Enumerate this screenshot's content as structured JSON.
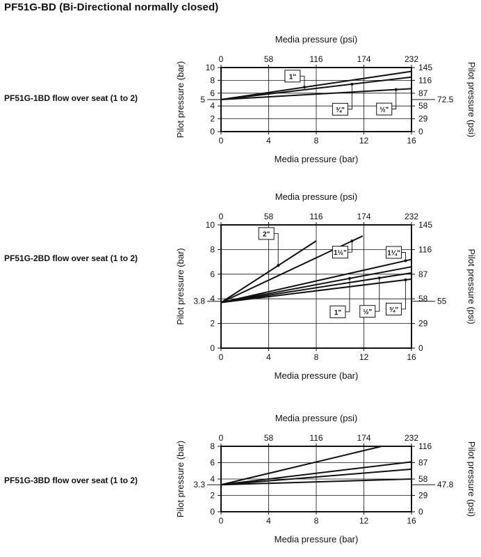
{
  "page": {
    "title": "PF51G-BD (Bi-Directional normally closed)"
  },
  "colors": {
    "line": "#111111",
    "background": "#ffffff"
  },
  "chart_data": [
    {
      "type": "line",
      "label": "PF51G-1BD flow over seat (1 to 2)",
      "title": "",
      "xlabel": "Media pressure (bar)",
      "xlabel_top": "Media pressure (psi)",
      "ylabel": "Pilot pressure (bar)",
      "ylabel_right": "Pilot pressure (psi)",
      "xlim": [
        0,
        16
      ],
      "ylim": [
        0,
        10
      ],
      "x_ticks": [
        "0",
        "4",
        "8",
        "12",
        "16"
      ],
      "x_top_ticks": [
        "0",
        "58",
        "116",
        "174",
        "232"
      ],
      "y_ticks": [
        "0",
        "2",
        "4",
        "6",
        "8",
        "10"
      ],
      "y_right_ticks": [
        "0",
        "29",
        "58",
        "87",
        "116",
        "145"
      ],
      "y_marker_left": {
        "value": 5,
        "label": "5"
      },
      "y_marker_right": {
        "value": 5,
        "label": "72.5"
      },
      "series": [
        {
          "name": "1\"",
          "x": [
            0,
            16
          ],
          "y": [
            5,
            9.4
          ],
          "callout": {
            "at": 7.0,
            "dir": "up",
            "dy": 16
          }
        },
        {
          "name": "¾\"",
          "x": [
            0,
            16
          ],
          "y": [
            5,
            8.5
          ],
          "callout": {
            "at": 11.0,
            "dir": "down",
            "dy": 36
          }
        },
        {
          "name": "½\"",
          "x": [
            0,
            16
          ],
          "y": [
            5,
            6.7
          ],
          "callout": {
            "at": 14.7,
            "dir": "down",
            "dy": 28
          }
        }
      ]
    },
    {
      "type": "line",
      "label": "PF51G-2BD flow over seat (1 to 2)",
      "title": "",
      "xlabel": "Media pressure (bar)",
      "xlabel_top": "Media pressure (psi)",
      "ylabel": "Pilot pressure (bar)",
      "ylabel_right": "Pilot pressure (psi)",
      "xlim": [
        0,
        16
      ],
      "ylim": [
        0,
        10
      ],
      "x_ticks": [
        "0",
        "4",
        "8",
        "12",
        "16"
      ],
      "x_top_ticks": [
        "0",
        "58",
        "116",
        "174",
        "232"
      ],
      "y_ticks": [
        "0",
        "2",
        "4",
        "6",
        "8",
        "10"
      ],
      "y_right_ticks": [
        "0",
        "29",
        "58",
        "87",
        "116",
        "145"
      ],
      "y_marker_left": {
        "value": 3.8,
        "label": "3.8"
      },
      "y_marker_right": {
        "value": 3.8,
        "label": "55"
      },
      "series": [
        {
          "name": "2\"",
          "x": [
            0,
            8
          ],
          "y": [
            3.7,
            8.7
          ],
          "callout": {
            "at": 4.8,
            "dir": "up",
            "dy": 46
          }
        },
        {
          "name": "1½\"",
          "x": [
            0,
            11.9
          ],
          "y": [
            3.7,
            9.1
          ],
          "callout": {
            "at": 11.0,
            "dir": "down",
            "dy": 16
          }
        },
        {
          "name": "1¼\"",
          "x": [
            0,
            16
          ],
          "y": [
            3.7,
            7.2
          ],
          "callout": {
            "at": 15.5,
            "dir": "up",
            "dy": 12
          }
        },
        {
          "name": "1\"",
          "x": [
            0,
            16
          ],
          "y": [
            3.7,
            6.6
          ],
          "callout": {
            "at": 10.8,
            "dir": "down",
            "dy": 48
          }
        },
        {
          "name": "½\"",
          "x": [
            0,
            16
          ],
          "y": [
            3.7,
            6.1
          ],
          "callout": {
            "at": 13.3,
            "dir": "down",
            "dy": 48
          }
        },
        {
          "name": "¾\"",
          "x": [
            0,
            16
          ],
          "y": [
            3.7,
            5.6
          ],
          "callout": {
            "at": 15.5,
            "dir": "down",
            "dy": 42
          }
        }
      ]
    },
    {
      "type": "line",
      "label": "PF51G-3BD flow over seat (1 to 2)",
      "title": "",
      "xlabel": "Media pressure (bar)",
      "xlabel_top": "Media pressure (psi)",
      "ylabel": "Pilot pressure (bar)",
      "ylabel_right": "Pilot pressure (psi)",
      "xlim": [
        0,
        16
      ],
      "ylim": [
        0,
        8
      ],
      "x_ticks": [
        "0",
        "4",
        "8",
        "12",
        "16"
      ],
      "x_top_ticks": [
        "0",
        "58",
        "116",
        "174",
        "232"
      ],
      "y_ticks": [
        "0",
        "2",
        "4",
        "6",
        "8"
      ],
      "y_right_ticks": [
        "0",
        "29",
        "58",
        "87",
        "116"
      ],
      "y_marker_left": {
        "value": 3.3,
        "label": "3.3"
      },
      "y_marker_right": {
        "value": 3.3,
        "label": "47.8"
      },
      "series": [
        {
          "name": "",
          "x": [
            0,
            13.5
          ],
          "y": [
            3.3,
            8
          ]
        },
        {
          "name": "",
          "x": [
            0,
            16
          ],
          "y": [
            3.3,
            6.1
          ]
        },
        {
          "name": "",
          "x": [
            0,
            16
          ],
          "y": [
            3.3,
            5.2
          ]
        },
        {
          "name": "",
          "x": [
            0,
            16
          ],
          "y": [
            3.3,
            4.0
          ]
        }
      ]
    }
  ]
}
